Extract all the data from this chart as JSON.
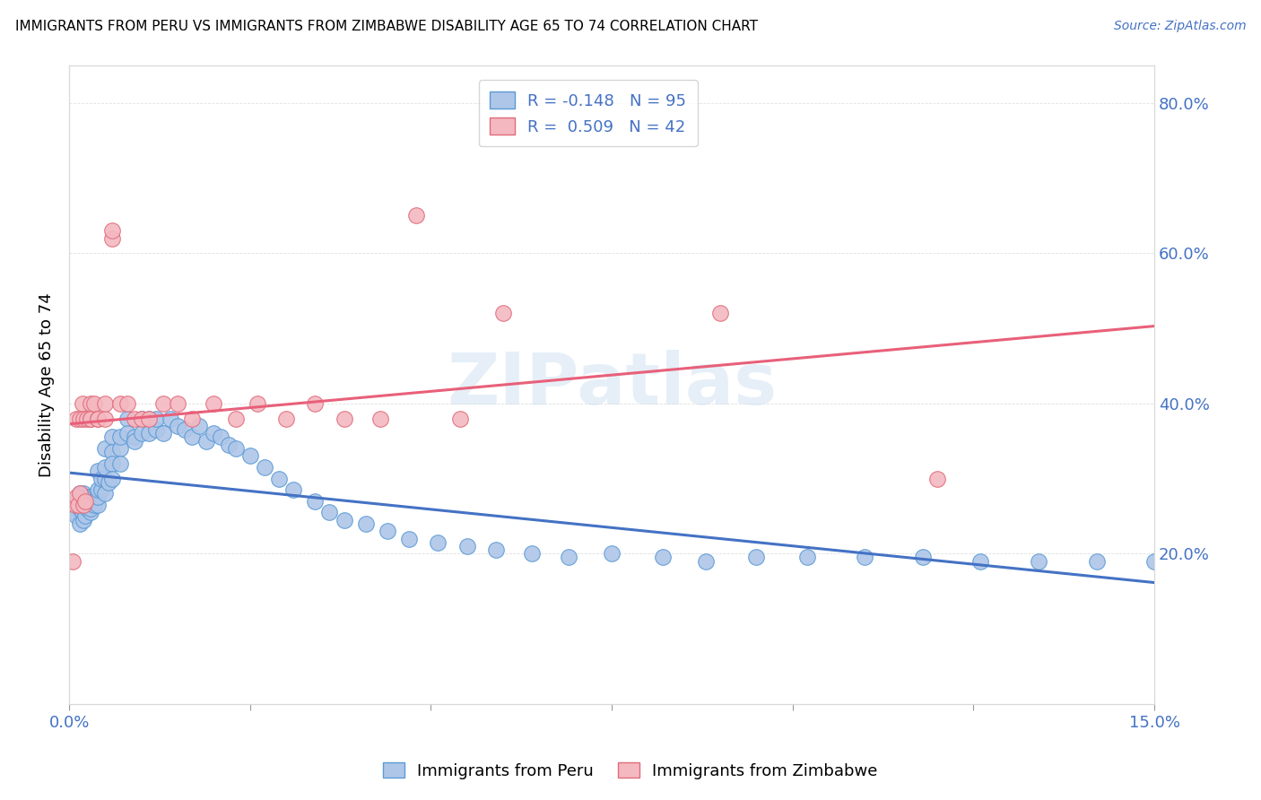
{
  "title": "IMMIGRANTS FROM PERU VS IMMIGRANTS FROM ZIMBABWE DISABILITY AGE 65 TO 74 CORRELATION CHART",
  "source": "Source: ZipAtlas.com",
  "ylabel": "Disability Age 65 to 74",
  "xlim": [
    0.0,
    0.15
  ],
  "ylim": [
    0.0,
    0.85
  ],
  "xticks": [
    0.0,
    0.025,
    0.05,
    0.075,
    0.1,
    0.125,
    0.15
  ],
  "xticklabels": [
    "0.0%",
    "",
    "",
    "",
    "",
    "",
    "15.0%"
  ],
  "yticks": [
    0.0,
    0.2,
    0.4,
    0.6,
    0.8
  ],
  "yticklabels": [
    "",
    "20.0%",
    "40.0%",
    "60.0%",
    "80.0%"
  ],
  "peru_color": "#aec6e8",
  "peru_edge_color": "#5b9bd5",
  "zimbabwe_color": "#f4b8c1",
  "zimbabwe_edge_color": "#e06c7a",
  "peru_line_color": "#4472c4",
  "zimbabwe_line_color": "#e8607a",
  "peru_R": -0.148,
  "peru_N": 95,
  "zimbabwe_R": 0.509,
  "zimbabwe_N": 42,
  "watermark": "ZIPatlas",
  "peru_x": [
    0.0005,
    0.0008,
    0.001,
    0.001,
    0.001,
    0.0012,
    0.0012,
    0.0015,
    0.0015,
    0.0015,
    0.0018,
    0.002,
    0.002,
    0.002,
    0.002,
    0.0022,
    0.0022,
    0.0025,
    0.0025,
    0.0025,
    0.003,
    0.003,
    0.003,
    0.003,
    0.003,
    0.003,
    0.003,
    0.0035,
    0.0035,
    0.004,
    0.004,
    0.004,
    0.004,
    0.004,
    0.0045,
    0.0045,
    0.005,
    0.005,
    0.005,
    0.005,
    0.0055,
    0.006,
    0.006,
    0.006,
    0.006,
    0.007,
    0.007,
    0.007,
    0.008,
    0.008,
    0.009,
    0.009,
    0.01,
    0.01,
    0.011,
    0.011,
    0.012,
    0.012,
    0.013,
    0.014,
    0.015,
    0.016,
    0.017,
    0.018,
    0.019,
    0.02,
    0.021,
    0.022,
    0.023,
    0.025,
    0.027,
    0.029,
    0.031,
    0.034,
    0.036,
    0.038,
    0.041,
    0.044,
    0.047,
    0.051,
    0.055,
    0.059,
    0.064,
    0.069,
    0.075,
    0.082,
    0.088,
    0.095,
    0.102,
    0.11,
    0.118,
    0.126,
    0.134,
    0.142,
    0.15
  ],
  "peru_y": [
    0.27,
    0.255,
    0.26,
    0.27,
    0.25,
    0.265,
    0.275,
    0.24,
    0.26,
    0.28,
    0.255,
    0.245,
    0.265,
    0.27,
    0.28,
    0.25,
    0.27,
    0.26,
    0.265,
    0.275,
    0.26,
    0.27,
    0.26,
    0.255,
    0.265,
    0.275,
    0.26,
    0.275,
    0.265,
    0.28,
    0.31,
    0.265,
    0.275,
    0.285,
    0.285,
    0.3,
    0.3,
    0.315,
    0.34,
    0.28,
    0.295,
    0.355,
    0.335,
    0.32,
    0.3,
    0.34,
    0.32,
    0.355,
    0.38,
    0.36,
    0.355,
    0.35,
    0.38,
    0.36,
    0.38,
    0.36,
    0.365,
    0.38,
    0.36,
    0.38,
    0.37,
    0.365,
    0.355,
    0.37,
    0.35,
    0.36,
    0.355,
    0.345,
    0.34,
    0.33,
    0.315,
    0.3,
    0.285,
    0.27,
    0.255,
    0.245,
    0.24,
    0.23,
    0.22,
    0.215,
    0.21,
    0.205,
    0.2,
    0.195,
    0.2,
    0.195,
    0.19,
    0.195,
    0.195,
    0.195,
    0.195,
    0.19,
    0.19,
    0.19,
    0.19
  ],
  "zimbabwe_x": [
    0.0005,
    0.0008,
    0.001,
    0.001,
    0.0012,
    0.0015,
    0.0015,
    0.0018,
    0.002,
    0.002,
    0.0022,
    0.0025,
    0.003,
    0.003,
    0.003,
    0.0035,
    0.004,
    0.004,
    0.005,
    0.005,
    0.006,
    0.006,
    0.007,
    0.008,
    0.009,
    0.01,
    0.011,
    0.013,
    0.015,
    0.017,
    0.02,
    0.023,
    0.026,
    0.03,
    0.034,
    0.038,
    0.043,
    0.048,
    0.054,
    0.06,
    0.09,
    0.12
  ],
  "zimbabwe_y": [
    0.19,
    0.265,
    0.275,
    0.38,
    0.265,
    0.28,
    0.38,
    0.4,
    0.265,
    0.38,
    0.27,
    0.38,
    0.38,
    0.4,
    0.38,
    0.4,
    0.38,
    0.38,
    0.38,
    0.4,
    0.62,
    0.63,
    0.4,
    0.4,
    0.38,
    0.38,
    0.38,
    0.4,
    0.4,
    0.38,
    0.4,
    0.38,
    0.4,
    0.38,
    0.4,
    0.38,
    0.38,
    0.65,
    0.38,
    0.52,
    0.52,
    0.3
  ],
  "background_color": "#ffffff",
  "grid_color": "#d9d9d9",
  "tick_color": "#4472c4",
  "ylabel_color": "#000000"
}
